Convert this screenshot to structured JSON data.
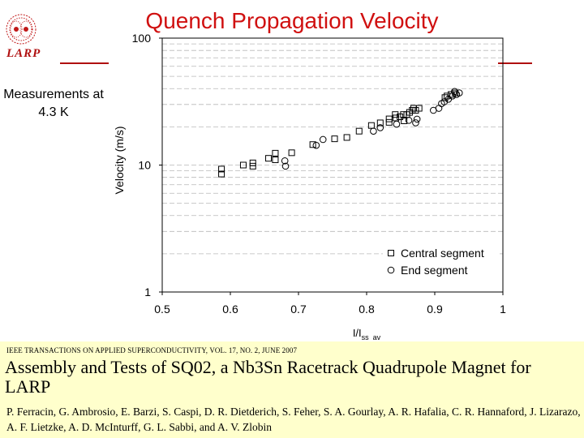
{
  "slide": {
    "title": "Quench Propagation Velocity",
    "side_note": "Measurements at 4.3 K",
    "logo_text": "LARP"
  },
  "citation": {
    "journal": "IEEE TRANSACTIONS ON APPLIED SUPERCONDUCTIVITY, VOL. 17, NO. 2, JUNE 2007",
    "paper_title": "Assembly and Tests of SQ02, a Nb3Sn Racetrack Quadrupole Magnet for LARP",
    "authors": "P. Ferracin, G. Ambrosio, E. Barzi, S. Caspi, D. R. Dietderich, S. Feher, S. A. Gourlay, A. R. Hafalia, C. R. Hannaford, J. Lizarazo, A. F. Lietzke, A. D. McInturff, G. L. Sabbi, and A. V. Zlobin"
  },
  "colors": {
    "title": "#d01010",
    "rule": "#b01010",
    "citation_bg": "#ffffcc"
  },
  "chart_data": {
    "type": "scatter",
    "title": "",
    "xlabel": "I/I",
    "xlabel_sub": "ss_av",
    "ylabel": "Velocity (m/s)",
    "xlim": [
      0.5,
      1.0
    ],
    "ylim": [
      1,
      100
    ],
    "y_scale": "log",
    "x_ticks": [
      0.5,
      0.6,
      0.7,
      0.8,
      0.9,
      1
    ],
    "x_tick_labels": [
      "0.5",
      "0.6",
      "0.7",
      "0.8",
      "0.9",
      "1"
    ],
    "y_ticks": [
      1,
      10,
      100
    ],
    "y_tick_labels": [
      "1",
      "10",
      "100"
    ],
    "grid": "horizontal dashed",
    "legend": "bottom-right",
    "series": [
      {
        "name": "Central segment",
        "marker": "square",
        "points": [
          [
            0.587,
            8.5
          ],
          [
            0.587,
            9.3
          ],
          [
            0.619,
            10.0
          ],
          [
            0.633,
            9.8
          ],
          [
            0.633,
            10.4
          ],
          [
            0.656,
            11.3
          ],
          [
            0.666,
            12.4
          ],
          [
            0.666,
            11.0
          ],
          [
            0.69,
            12.5
          ],
          [
            0.721,
            14.5
          ],
          [
            0.753,
            16.1
          ],
          [
            0.771,
            16.5
          ],
          [
            0.789,
            18.5
          ],
          [
            0.807,
            20.5
          ],
          [
            0.82,
            21.5
          ],
          [
            0.833,
            21.7
          ],
          [
            0.833,
            23.1
          ],
          [
            0.843,
            23.5
          ],
          [
            0.849,
            24.0
          ],
          [
            0.854,
            25.0
          ],
          [
            0.859,
            25.0
          ],
          [
            0.863,
            26.0
          ],
          [
            0.867,
            27.0
          ],
          [
            0.869,
            28.0
          ],
          [
            0.872,
            27.0
          ],
          [
            0.877,
            28.0
          ],
          [
            0.842,
            25.0
          ],
          [
            0.855,
            22.3
          ],
          [
            0.915,
            34.0
          ],
          [
            0.918,
            35.0
          ],
          [
            0.924,
            36.0
          ],
          [
            0.93,
            37.0
          ]
        ]
      },
      {
        "name": "End segment",
        "marker": "circle",
        "points": [
          [
            0.681,
            9.8
          ],
          [
            0.68,
            10.8
          ],
          [
            0.726,
            14.3
          ],
          [
            0.736,
            15.9
          ],
          [
            0.81,
            18.5
          ],
          [
            0.82,
            19.7
          ],
          [
            0.844,
            21.0
          ],
          [
            0.862,
            22.5
          ],
          [
            0.872,
            21.5
          ],
          [
            0.874,
            23.0
          ],
          [
            0.898,
            27.0
          ],
          [
            0.906,
            28.0
          ],
          [
            0.91,
            30.5
          ],
          [
            0.914,
            31.5
          ],
          [
            0.92,
            33.0
          ],
          [
            0.926,
            35.0
          ],
          [
            0.932,
            36.0
          ],
          [
            0.936,
            37.0
          ],
          [
            0.929,
            38.0
          ]
        ]
      }
    ]
  }
}
